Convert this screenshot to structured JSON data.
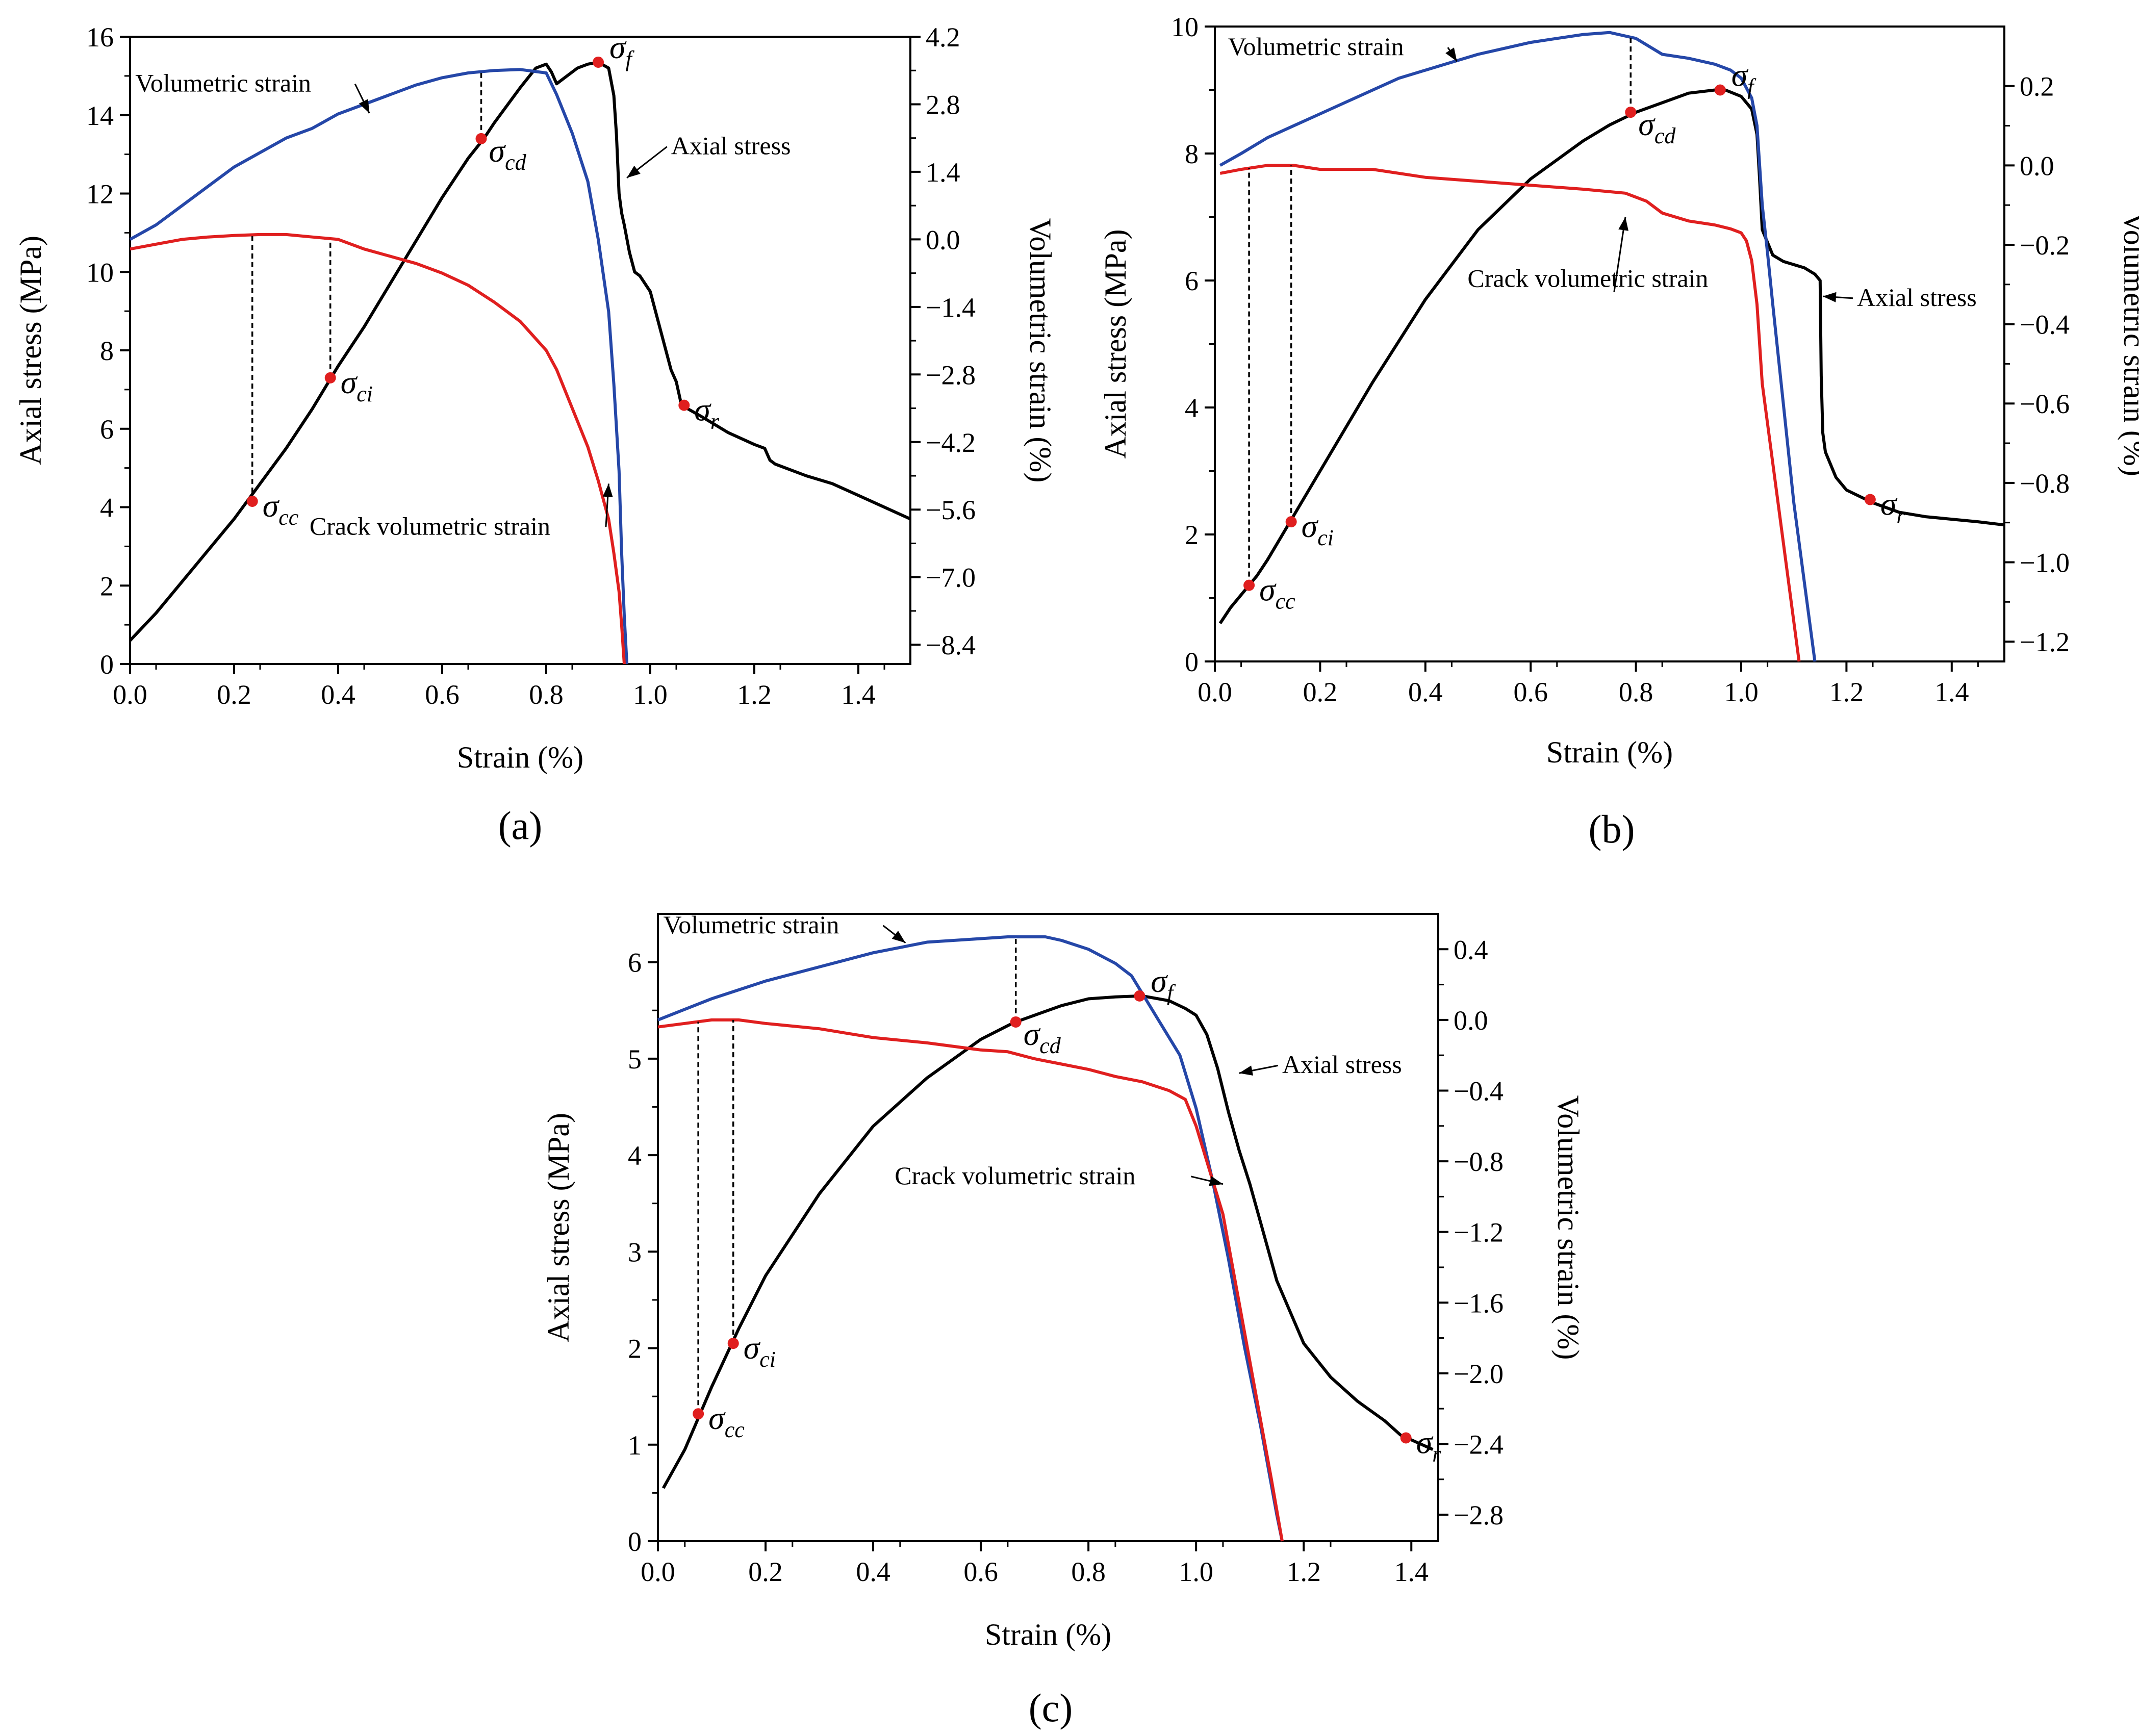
{
  "figure": {
    "panels": [
      "a",
      "b",
      "c"
    ]
  },
  "chart_data": [
    {
      "type": "line",
      "panel_label": "(a)",
      "xlabel": "Strain (%)",
      "ylabel": "Axial stress (MPa)",
      "y2label": "Volumetric strain (%)",
      "xlim": [
        0,
        1.5
      ],
      "ylim": [
        0,
        16
      ],
      "y2lim": [
        -8.8,
        4.2
      ],
      "xticks": [
        "0.0",
        "0.2",
        "0.4",
        "0.6",
        "0.8",
        "1.0",
        "1.2",
        "1.4"
      ],
      "yticks": [
        "0",
        "2",
        "4",
        "6",
        "8",
        "10",
        "12",
        "14",
        "16"
      ],
      "y2ticks": [
        "4.2",
        "2.8",
        "1.4",
        "0.0",
        "−1.4",
        "−2.8",
        "−4.2",
        "−5.6",
        "−7.0",
        "−8.4"
      ],
      "colors": {
        "axial": "#000000",
        "volumetric": "#2547a8",
        "crack": "#e01f1f",
        "point": "#e01f1f"
      },
      "series": [
        {
          "name": "Axial stress",
          "axis": "left",
          "color": "#000000",
          "x": [
            0,
            0.05,
            0.1,
            0.15,
            0.2,
            0.25,
            0.3,
            0.35,
            0.4,
            0.45,
            0.5,
            0.55,
            0.6,
            0.65,
            0.68,
            0.7,
            0.75,
            0.78,
            0.8,
            0.81,
            0.82,
            0.84,
            0.86,
            0.88,
            0.9,
            0.92,
            0.93,
            0.935,
            0.94,
            0.945,
            0.95,
            0.96,
            0.97,
            0.98,
            1.0,
            1.02,
            1.04,
            1.05,
            1.06,
            1.1,
            1.15,
            1.2,
            1.22,
            1.23,
            1.24,
            1.3,
            1.35,
            1.4,
            1.45,
            1.5
          ],
          "y": [
            0.6,
            1.3,
            2.1,
            2.9,
            3.7,
            4.6,
            5.5,
            6.5,
            7.6,
            8.6,
            9.7,
            10.8,
            11.9,
            12.9,
            13.4,
            13.8,
            14.7,
            15.2,
            15.3,
            15.1,
            14.8,
            15.0,
            15.2,
            15.3,
            15.35,
            15.2,
            14.5,
            13.5,
            12.0,
            11.5,
            11.2,
            10.5,
            10.0,
            9.9,
            9.5,
            8.5,
            7.5,
            7.2,
            6.6,
            6.3,
            5.9,
            5.6,
            5.5,
            5.2,
            5.1,
            4.8,
            4.6,
            4.3,
            4.0,
            3.7
          ]
        },
        {
          "name": "Volumetric strain",
          "axis": "right",
          "color": "#2547a8",
          "x": [
            0,
            0.05,
            0.1,
            0.15,
            0.2,
            0.25,
            0.3,
            0.35,
            0.4,
            0.45,
            0.5,
            0.55,
            0.6,
            0.65,
            0.7,
            0.75,
            0.8,
            0.82,
            0.85,
            0.88,
            0.9,
            0.92,
            0.93,
            0.94,
            0.945,
            0.95,
            0.955
          ],
          "y": [
            0.0,
            0.3,
            0.7,
            1.1,
            1.5,
            1.8,
            2.1,
            2.3,
            2.6,
            2.8,
            3.0,
            3.2,
            3.35,
            3.45,
            3.5,
            3.52,
            3.45,
            3.0,
            2.2,
            1.2,
            0.0,
            -1.5,
            -3.0,
            -4.8,
            -6.5,
            -7.8,
            -8.8
          ]
        },
        {
          "name": "Crack volumetric strain",
          "axis": "right",
          "color": "#e01f1f",
          "x": [
            0,
            0.05,
            0.1,
            0.15,
            0.2,
            0.25,
            0.3,
            0.35,
            0.4,
            0.45,
            0.5,
            0.55,
            0.6,
            0.65,
            0.7,
            0.75,
            0.8,
            0.82,
            0.85,
            0.88,
            0.9,
            0.92,
            0.93,
            0.94,
            0.945,
            0.95
          ],
          "y": [
            -0.2,
            -0.1,
            0.0,
            0.05,
            0.08,
            0.1,
            0.1,
            0.05,
            0.0,
            -0.2,
            -0.35,
            -0.5,
            -0.7,
            -0.95,
            -1.3,
            -1.7,
            -2.3,
            -2.7,
            -3.5,
            -4.3,
            -5.0,
            -5.8,
            -6.5,
            -7.3,
            -8.0,
            -8.8
          ]
        }
      ],
      "points": [
        {
          "label": "σ",
          "sub": "cc",
          "x": 0.235,
          "y": 4.15,
          "drop_to_series": "Crack volumetric strain"
        },
        {
          "label": "σ",
          "sub": "ci",
          "x": 0.385,
          "y": 7.3,
          "drop_to_series": "Crack volumetric strain"
        },
        {
          "label": "σ",
          "sub": "cd",
          "x": 0.675,
          "y": 13.4,
          "drop_to_series": "Volumetric strain"
        },
        {
          "label": "σ",
          "sub": "f",
          "x": 0.9,
          "y": 15.35
        },
        {
          "label": "σ",
          "sub": "r",
          "x": 1.065,
          "y": 6.6
        }
      ],
      "annotations": [
        {
          "text": "Volumetric strain",
          "x": 0.01,
          "y": 14.6,
          "ax": 0.46,
          "ay": 14.05
        },
        {
          "text": "Axial stress",
          "x": 1.04,
          "y": 13.0,
          "ax": 0.955,
          "ay": 12.4
        },
        {
          "text": "Crack volumetric strain",
          "x": 0.345,
          "y": 3.3,
          "ax": 0.92,
          "ay": 4.6
        }
      ]
    },
    {
      "type": "line",
      "panel_label": "(b)",
      "xlabel": "Strain (%)",
      "ylabel": "Axial stress (MPa)",
      "y2label": "Volumetric strain (%)",
      "xlim": [
        0,
        1.5
      ],
      "ylim": [
        0,
        10
      ],
      "y2lim": [
        -1.25,
        0.35
      ],
      "xticks": [
        "0.0",
        "0.2",
        "0.4",
        "0.6",
        "0.8",
        "1.0",
        "1.2",
        "1.4"
      ],
      "yticks": [
        "0",
        "2",
        "4",
        "6",
        "8",
        "10"
      ],
      "y2ticks": [
        "0.2",
        "0.0",
        "−0.2",
        "−0.4",
        "−0.6",
        "−0.8",
        "−1.0",
        "−1.2"
      ],
      "colors": {
        "axial": "#000000",
        "volumetric": "#2547a8",
        "crack": "#e01f1f",
        "point": "#e01f1f"
      },
      "series": [
        {
          "name": "Axial stress",
          "axis": "left",
          "color": "#000000",
          "x": [
            0.01,
            0.03,
            0.05,
            0.08,
            0.1,
            0.15,
            0.2,
            0.3,
            0.4,
            0.5,
            0.6,
            0.7,
            0.75,
            0.8,
            0.85,
            0.9,
            0.95,
            0.97,
            1.0,
            1.02,
            1.03,
            1.035,
            1.04,
            1.045,
            1.05,
            1.06,
            1.08,
            1.1,
            1.12,
            1.14,
            1.15,
            1.152,
            1.155,
            1.16,
            1.18,
            1.2,
            1.25,
            1.3,
            1.35,
            1.4,
            1.45,
            1.5
          ],
          "y": [
            0.6,
            0.85,
            1.05,
            1.35,
            1.6,
            2.3,
            3.0,
            4.4,
            5.7,
            6.8,
            7.6,
            8.2,
            8.45,
            8.65,
            8.8,
            8.95,
            9.0,
            9.0,
            8.9,
            8.7,
            8.3,
            7.6,
            6.8,
            6.7,
            6.6,
            6.4,
            6.3,
            6.25,
            6.2,
            6.1,
            6.0,
            4.5,
            3.6,
            3.3,
            2.9,
            2.7,
            2.5,
            2.35,
            2.28,
            2.24,
            2.2,
            2.15
          ]
        },
        {
          "name": "Volumetric strain",
          "axis": "right",
          "color": "#2547a8",
          "x": [
            0.01,
            0.05,
            0.1,
            0.15,
            0.2,
            0.25,
            0.3,
            0.35,
            0.4,
            0.45,
            0.5,
            0.55,
            0.6,
            0.65,
            0.7,
            0.75,
            0.8,
            0.85,
            0.9,
            0.95,
            0.98,
            1.0,
            1.02,
            1.03,
            1.04,
            1.05,
            1.06,
            1.08,
            1.1,
            1.12,
            1.14
          ],
          "y": [
            0.0,
            0.03,
            0.07,
            0.1,
            0.13,
            0.16,
            0.19,
            0.22,
            0.24,
            0.26,
            0.28,
            0.295,
            0.31,
            0.32,
            0.33,
            0.335,
            0.32,
            0.28,
            0.27,
            0.255,
            0.24,
            0.22,
            0.17,
            0.1,
            -0.1,
            -0.22,
            -0.35,
            -0.6,
            -0.85,
            -1.05,
            -1.25
          ]
        },
        {
          "name": "Crack volumetric strain",
          "axis": "right",
          "color": "#e01f1f",
          "x": [
            0.01,
            0.05,
            0.1,
            0.15,
            0.2,
            0.3,
            0.4,
            0.5,
            0.6,
            0.7,
            0.78,
            0.82,
            0.85,
            0.9,
            0.95,
            0.98,
            1.0,
            1.01,
            1.02,
            1.03,
            1.04,
            1.06,
            1.08,
            1.1,
            1.11
          ],
          "y": [
            -0.02,
            -0.01,
            0.0,
            0.0,
            -0.01,
            -0.01,
            -0.03,
            -0.04,
            -0.05,
            -0.06,
            -0.07,
            -0.09,
            -0.12,
            -0.14,
            -0.15,
            -0.16,
            -0.17,
            -0.19,
            -0.24,
            -0.35,
            -0.55,
            -0.75,
            -0.95,
            -1.15,
            -1.25
          ]
        }
      ],
      "points": [
        {
          "label": "σ",
          "sub": "cc",
          "x": 0.065,
          "y": 1.2,
          "drop_to_series": "Crack volumetric strain"
        },
        {
          "label": "σ",
          "sub": "ci",
          "x": 0.145,
          "y": 2.2,
          "drop_to_series": "Crack volumetric strain"
        },
        {
          "label": "σ",
          "sub": "cd",
          "x": 0.79,
          "y": 8.65,
          "drop_to_series": "Volumetric strain"
        },
        {
          "label": "σ",
          "sub": "f",
          "x": 0.96,
          "y": 9.0
        },
        {
          "label": "σ",
          "sub": "r",
          "x": 1.245,
          "y": 2.55
        }
      ],
      "annotations": [
        {
          "text": "Volumetric strain",
          "x": 0.025,
          "y": 9.55,
          "ax": 0.46,
          "ay": 9.45
        },
        {
          "text": "Crack volumetric strain",
          "x": 0.48,
          "y": 5.9,
          "ax": 0.78,
          "ay": 7.0
        },
        {
          "text": "Axial stress",
          "x": 1.22,
          "y": 5.6,
          "ax": 1.155,
          "ay": 5.75
        }
      ]
    },
    {
      "type": "line",
      "panel_label": "(c)",
      "xlabel": "Strain (%)",
      "ylabel": "Axial stress (MPa)",
      "y2label": "Volumetric strain (%)",
      "xlim": [
        0,
        1.45
      ],
      "ylim": [
        0,
        6.5
      ],
      "y2lim": [
        -2.95,
        0.6
      ],
      "xticks": [
        "0.0",
        "0.2",
        "0.4",
        "0.6",
        "0.8",
        "1.0",
        "1.2",
        "1.4"
      ],
      "yticks": [
        "0",
        "1",
        "2",
        "3",
        "4",
        "5",
        "6"
      ],
      "y2ticks": [
        "0.4",
        "0.0",
        "−0.4",
        "−0.8",
        "−1.2",
        "−1.6",
        "−2.0",
        "−2.4",
        "−2.8"
      ],
      "colors": {
        "axial": "#000000",
        "volumetric": "#2547a8",
        "crack": "#e01f1f",
        "point": "#e01f1f"
      },
      "series": [
        {
          "name": "Axial stress",
          "axis": "left",
          "color": "#000000",
          "x": [
            0.01,
            0.05,
            0.1,
            0.15,
            0.2,
            0.3,
            0.4,
            0.5,
            0.6,
            0.66,
            0.7,
            0.75,
            0.8,
            0.85,
            0.9,
            0.95,
            0.98,
            1.0,
            1.02,
            1.04,
            1.06,
            1.08,
            1.1,
            1.12,
            1.15,
            1.2,
            1.25,
            1.3,
            1.35,
            1.38,
            1.4,
            1.44
          ],
          "y": [
            0.55,
            0.95,
            1.6,
            2.2,
            2.75,
            3.6,
            4.3,
            4.8,
            5.2,
            5.37,
            5.45,
            5.55,
            5.62,
            5.64,
            5.65,
            5.6,
            5.52,
            5.45,
            5.25,
            4.9,
            4.45,
            4.05,
            3.7,
            3.3,
            2.7,
            2.05,
            1.7,
            1.45,
            1.25,
            1.1,
            1.05,
            0.95
          ]
        },
        {
          "name": "Volumetric strain",
          "axis": "right",
          "color": "#2547a8",
          "x": [
            0.0,
            0.05,
            0.1,
            0.15,
            0.2,
            0.3,
            0.4,
            0.5,
            0.6,
            0.65,
            0.7,
            0.72,
            0.75,
            0.8,
            0.85,
            0.88,
            0.9,
            0.93,
            0.97,
            1.0,
            1.03,
            1.06,
            1.09,
            1.12,
            1.15,
            1.16
          ],
          "y": [
            0.0,
            0.06,
            0.12,
            0.17,
            0.22,
            0.3,
            0.38,
            0.44,
            0.46,
            0.47,
            0.47,
            0.47,
            0.45,
            0.4,
            0.32,
            0.25,
            0.15,
            0.0,
            -0.2,
            -0.5,
            -0.9,
            -1.35,
            -1.85,
            -2.3,
            -2.8,
            -2.95
          ]
        },
        {
          "name": "Crack volumetric strain",
          "axis": "right",
          "color": "#e01f1f",
          "x": [
            0.0,
            0.05,
            0.1,
            0.15,
            0.2,
            0.3,
            0.4,
            0.5,
            0.6,
            0.65,
            0.7,
            0.75,
            0.8,
            0.85,
            0.9,
            0.95,
            0.98,
            1.0,
            1.02,
            1.05,
            1.08,
            1.11,
            1.14,
            1.16
          ],
          "y": [
            -0.04,
            -0.02,
            0.0,
            0.0,
            -0.02,
            -0.05,
            -0.1,
            -0.13,
            -0.17,
            -0.18,
            -0.22,
            -0.25,
            -0.28,
            -0.32,
            -0.35,
            -0.4,
            -0.45,
            -0.6,
            -0.8,
            -1.1,
            -1.6,
            -2.1,
            -2.6,
            -2.95
          ]
        }
      ],
      "points": [
        {
          "label": "σ",
          "sub": "cc",
          "x": 0.075,
          "y": 1.32,
          "drop_to_series": "Crack volumetric strain"
        },
        {
          "label": "σ",
          "sub": "ci",
          "x": 0.14,
          "y": 2.05,
          "drop_to_series": "Crack volumetric strain"
        },
        {
          "label": "σ",
          "sub": "cd",
          "x": 0.665,
          "y": 5.38,
          "drop_to_series": "Volumetric strain"
        },
        {
          "label": "σ",
          "sub": "f",
          "x": 0.895,
          "y": 5.65
        },
        {
          "label": "σ",
          "sub": "r",
          "x": 1.39,
          "y": 1.07
        }
      ],
      "annotations": [
        {
          "text": "Volumetric strain",
          "x": 0.01,
          "y": 6.3,
          "ax": 0.46,
          "ay": 6.2
        },
        {
          "text": "Axial stress",
          "x": 1.16,
          "y": 4.85,
          "ax": 1.08,
          "ay": 4.85
        },
        {
          "text": "Crack volumetric strain",
          "x": 0.44,
          "y": 3.7,
          "ax": 1.05,
          "ay": 3.7
        }
      ]
    }
  ]
}
